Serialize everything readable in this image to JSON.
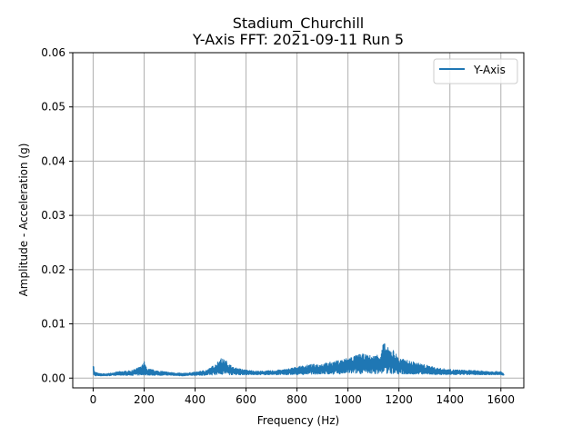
{
  "chart_data": {
    "type": "line",
    "title": "Stadium_Churchill",
    "subtitle": "Y-Axis FFT: 2021-09-11 Run 5",
    "xlabel": "Frequency (Hz)",
    "ylabel": "Amplitude - Acceleration (g)",
    "xlim": [
      -80,
      1690
    ],
    "ylim": [
      -0.0018,
      0.06
    ],
    "xticks": [
      0,
      200,
      400,
      600,
      800,
      1000,
      1200,
      1400,
      1600
    ],
    "yticks": [
      0.0,
      0.01,
      0.02,
      0.03,
      0.04,
      0.05,
      0.06
    ],
    "xtick_labels": [
      "0",
      "200",
      "400",
      "600",
      "800",
      "1000",
      "1200",
      "1400",
      "1600"
    ],
    "ytick_labels": [
      "0.00",
      "0.01",
      "0.02",
      "0.03",
      "0.04",
      "0.05",
      "0.06"
    ],
    "grid": true,
    "legend_position": "top-right",
    "series": [
      {
        "name": "Y-Axis",
        "color": "#1f77b4",
        "envelope_x": [
          0,
          2,
          5,
          20,
          50,
          100,
          150,
          190,
          200,
          210,
          250,
          300,
          350,
          400,
          450,
          480,
          500,
          520,
          550,
          600,
          650,
          700,
          750,
          800,
          850,
          900,
          950,
          1000,
          1050,
          1100,
          1130,
          1140,
          1150,
          1180,
          1200,
          1250,
          1300,
          1350,
          1400,
          1450,
          1500,
          1550,
          1600,
          1612
        ],
        "envelope_upper": [
          0.0035,
          0.0025,
          0.0012,
          0.0009,
          0.0008,
          0.0012,
          0.0014,
          0.0022,
          0.0032,
          0.0018,
          0.0014,
          0.0011,
          0.0009,
          0.0011,
          0.0016,
          0.0026,
          0.0037,
          0.0033,
          0.002,
          0.0015,
          0.0013,
          0.0014,
          0.0016,
          0.0021,
          0.0025,
          0.0027,
          0.0031,
          0.0038,
          0.0045,
          0.0041,
          0.0048,
          0.0068,
          0.0058,
          0.0052,
          0.0037,
          0.0031,
          0.0025,
          0.0019,
          0.0016,
          0.0015,
          0.0014,
          0.0013,
          0.0012,
          0.0008
        ],
        "envelope_lower": [
          0.0006,
          0.0005,
          0.0004,
          0.0004,
          0.0004,
          0.0005,
          0.0005,
          0.0005,
          0.0006,
          0.0005,
          0.0005,
          0.0005,
          0.0004,
          0.0005,
          0.0005,
          0.0006,
          0.0007,
          0.0006,
          0.0006,
          0.0006,
          0.0006,
          0.0006,
          0.0006,
          0.0006,
          0.0007,
          0.0007,
          0.0007,
          0.0008,
          0.0008,
          0.0008,
          0.0008,
          0.0009,
          0.0008,
          0.0008,
          0.0007,
          0.0007,
          0.0007,
          0.0006,
          0.0006,
          0.0006,
          0.0006,
          0.0006,
          0.0006,
          0.0005
        ]
      }
    ]
  }
}
